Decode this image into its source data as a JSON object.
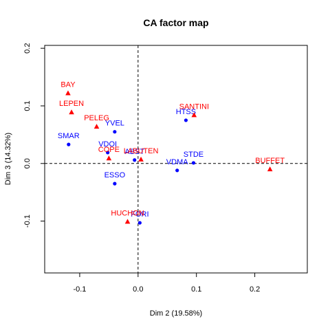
{
  "chart_data": {
    "type": "scatter",
    "title": "CA factor map",
    "xlabel": "Dim 2 (19.58%)",
    "ylabel": "Dim 3 (14.32%)",
    "xlim": [
      -0.16,
      0.29
    ],
    "ylim": [
      -0.19,
      0.205
    ],
    "xticks": [
      -0.1,
      0.0,
      0.1,
      0.2
    ],
    "xtick_labels": [
      "-0.1",
      "0.0",
      "0.1",
      "0.2"
    ],
    "yticks": [
      -0.1,
      0.0,
      0.1,
      0.2
    ],
    "ytick_labels": [
      "-0.1",
      "0.0",
      "0.1",
      "0.2"
    ],
    "reference_lines": {
      "x": 0,
      "y": 0,
      "style": "dashed"
    },
    "grid": false,
    "series": [
      {
        "marker": "circle",
        "color": "#0000ff",
        "points": [
          {
            "label": "SMAR",
            "x": -0.119,
            "y": 0.033
          },
          {
            "label": "YVEL",
            "x": -0.04,
            "y": 0.055
          },
          {
            "label": "VDOI",
            "x": -0.052,
            "y": 0.019
          },
          {
            "label": "ESSO",
            "x": -0.04,
            "y": -0.035
          },
          {
            "label": "ABST",
            "x": -0.006,
            "y": 0.006
          },
          {
            "label": "HTSS",
            "x": 0.082,
            "y": 0.075
          },
          {
            "label": "STDE",
            "x": 0.095,
            "y": 0.001
          },
          {
            "label": "VDMA",
            "x": 0.067,
            "y": -0.012
          },
          {
            "label": "FORI",
            "x": 0.003,
            "y": -0.103
          }
        ]
      },
      {
        "marker": "triangle",
        "color": "#ff0000",
        "points": [
          {
            "label": "BAY",
            "x": -0.12,
            "y": 0.122
          },
          {
            "label": "LEPEN",
            "x": -0.114,
            "y": 0.089
          },
          {
            "label": "PELEG",
            "x": -0.071,
            "y": 0.064
          },
          {
            "label": "COPE",
            "x": -0.05,
            "y": 0.009
          },
          {
            "label": "LABUTEN",
            "x": 0.005,
            "y": 0.007
          },
          {
            "label": "SANTINI",
            "x": 0.096,
            "y": 0.084
          },
          {
            "label": "BUFFET",
            "x": 0.226,
            "y": -0.01
          },
          {
            "label": "HUCHON",
            "x": -0.018,
            "y": -0.101
          }
        ]
      }
    ]
  }
}
